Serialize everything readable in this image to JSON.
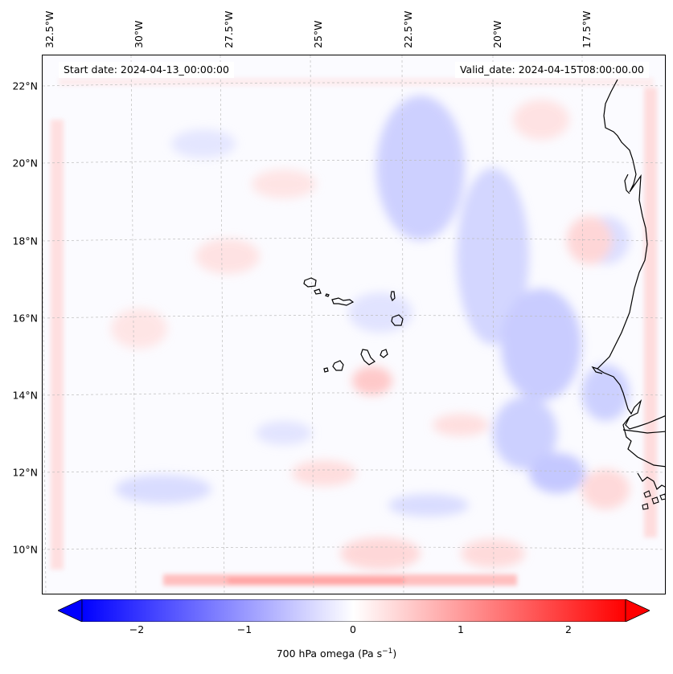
{
  "map": {
    "lon_labels": [
      "32.5°W",
      "30°W",
      "27.5°W",
      "25°W",
      "22.5°W",
      "20°W",
      "17.5°W"
    ],
    "lat_labels": [
      "22°N",
      "20°N",
      "18°N",
      "16°N",
      "14°N",
      "12°N",
      "10°N"
    ],
    "start_date": "Start date: 2024-04-13_00:00:00",
    "valid_date": "Valid_date: 2024-04-15T08:00:00.00",
    "field": "700 hPa omega",
    "colormap": "bwr",
    "coastline_color": "#000000",
    "gridline_style": "dashed",
    "gridline_color": "#bdbdbd",
    "features": [
      "Cape Verde islands",
      "West African coastline (Senegal, Gambia, Guinea-Bissau)"
    ]
  },
  "colorbar": {
    "ticks": [
      "−2",
      "−1",
      "0",
      "1",
      "2"
    ],
    "label_main": "700 hPa omega (Pa s",
    "label_exp": "−1",
    "label_close": ")",
    "vmin": -2.6,
    "vmax": 2.6,
    "min_color": "#0000ff",
    "mid_color": "#ffffff",
    "max_color": "#ff0000",
    "extend": "both"
  }
}
